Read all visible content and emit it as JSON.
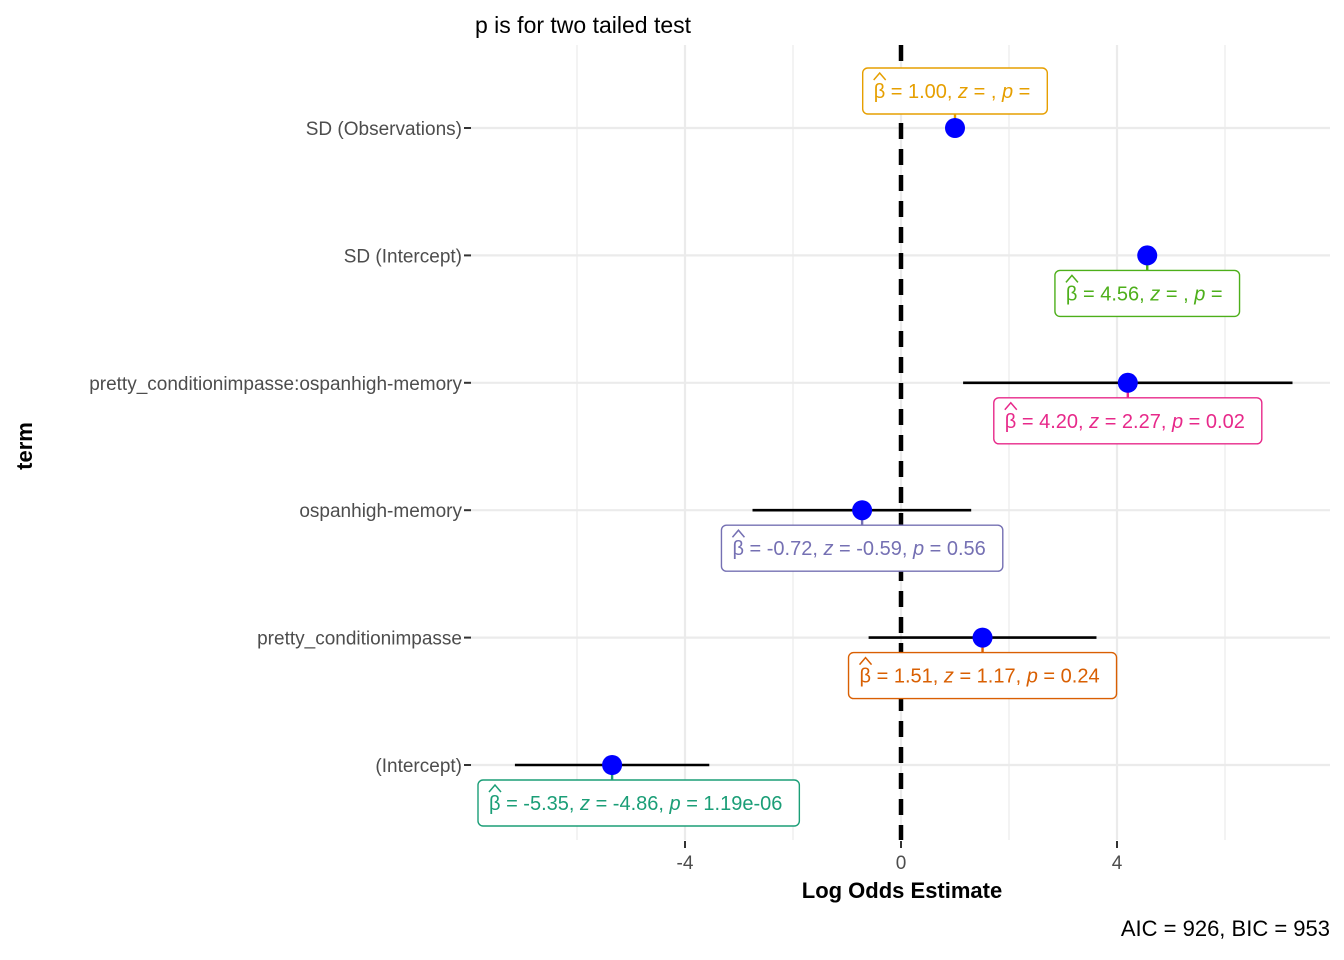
{
  "chart_data": {
    "type": "scatter",
    "subtype": "coefficient-forest-plot",
    "title": "p is for two tailed test",
    "xlabel": "Log Odds Estimate",
    "ylabel": "term",
    "caption": "AIC = 926, BIC = 953",
    "xlim": [
      -7.9,
      7.9
    ],
    "xticks": [
      -4,
      0,
      4
    ],
    "xtick_labels": [
      "-4",
      "0",
      "4"
    ],
    "reference_line": 0,
    "grid": true,
    "point_color": "#0000ff",
    "terms": [
      {
        "term": "SD (Observations)",
        "estimate": 1.0,
        "conf_low": null,
        "conf_high": null,
        "z": "",
        "p": "",
        "label": "β̂ = 1.00, z = , p = ",
        "color": "#E69F00",
        "label_side": "above"
      },
      {
        "term": "SD (Intercept)",
        "estimate": 4.56,
        "conf_low": null,
        "conf_high": null,
        "z": "",
        "p": "",
        "label": "β̂ = 4.56, z = , p = ",
        "color": "#4DAF1A",
        "label_side": "below"
      },
      {
        "term": "pretty_conditionimpasse:ospanhigh-memory",
        "estimate": 4.2,
        "conf_low": 1.15,
        "conf_high": 7.25,
        "z": "2.27",
        "p": "0.02",
        "label": "β̂ = 4.20, z = 2.27, p = 0.02",
        "color": "#E7298A",
        "label_side": "below"
      },
      {
        "term": "ospanhigh-memory",
        "estimate": -0.72,
        "conf_low": -2.75,
        "conf_high": 1.3,
        "z": "-0.59",
        "p": "0.56",
        "label": "β̂ = -0.72, z = -0.59, p = 0.56",
        "color": "#7570B3",
        "label_side": "below"
      },
      {
        "term": "pretty_conditionimpasse",
        "estimate": 1.51,
        "conf_low": -0.6,
        "conf_high": 3.62,
        "z": "1.17",
        "p": "0.24",
        "label": "β̂ = 1.51, z = 1.17, p = 0.24",
        "color": "#D95F02",
        "label_side": "below"
      },
      {
        "term": "(Intercept)",
        "estimate": -5.35,
        "conf_low": -7.15,
        "conf_high": -3.55,
        "z": "-4.86",
        "p": "1.19e-06",
        "label": "β̂ = -5.35, z = -4.86, p = 1.19e-06",
        "color": "#1B9E77",
        "label_side": "below"
      }
    ]
  }
}
